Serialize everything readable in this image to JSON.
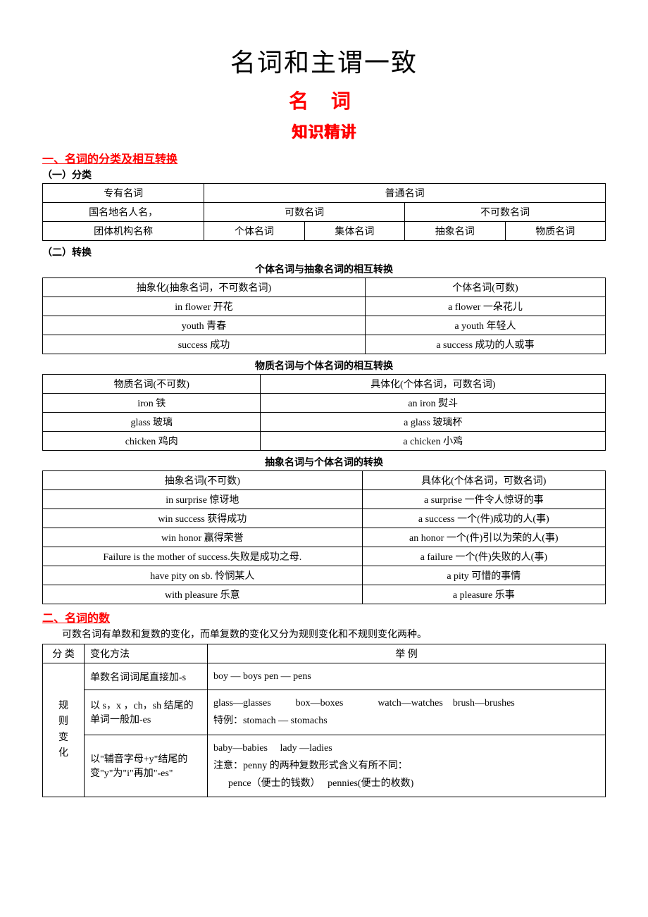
{
  "titles": {
    "main": "名词和主谓一致",
    "sub": "名 词",
    "knowledge": "知识精讲"
  },
  "section1": {
    "heading": "一、名词的分类及相互转换",
    "sub1": "（一）分类",
    "table1": {
      "r0c0": "专有名词",
      "r0c1": "普通名词",
      "r1c0": "国名地名人名，",
      "r1c1": "可数名词",
      "r1c2": "不可数名词",
      "r2c0": "团体机构名称",
      "r2c1": "个体名词",
      "r2c2": "集体名词",
      "r2c3": "抽象名词",
      "r2c4": "物质名词"
    },
    "sub2": "（二）转换",
    "caption1": "个体名词与抽象名词的相互转换",
    "table2": {
      "h0": "抽象化(抽象名词，不可数名词)",
      "h1": "个体名词(可数)",
      "r1c0": "in flower 开花",
      "r1c1": "a flower 一朵花儿",
      "r2c0": "youth 青春",
      "r2c1": "a youth 年轻人",
      "r3c0": "success 成功",
      "r3c1": "a success 成功的人或事"
    },
    "caption2": "物质名词与个体名词的相互转换",
    "table3": {
      "h0": "物质名词(不可数)",
      "h1": "具体化(个体名词，可数名词)",
      "r1c0": "iron 铁",
      "r1c1": "an iron 熨斗",
      "r2c0": "glass 玻璃",
      "r2c1": "a glass 玻璃杯",
      "r3c0": "chicken 鸡肉",
      "r3c1": "a chicken 小鸡"
    },
    "caption3": "抽象名词与个体名词的转换",
    "table4": {
      "h0": "抽象名词(不可数)",
      "h1": "具体化(个体名词，可数名词)",
      "r1c0": "in surprise  惊讶地",
      "r1c1": "a surprise  一件令人惊讶的事",
      "r2c0": "win success  获得成功",
      "r2c1": "a success  一个(件)成功的人(事)",
      "r3c0": "win honor  赢得荣誉",
      "r3c1": "an honor  一个(件)引以为荣的人(事)",
      "r4c0": "Failure is the mother of success.失败是成功之母.",
      "r4c1": "a failure  一个(件)失败的人(事)",
      "r5c0": "have pity on sb.  怜悯某人",
      "r5c1": "a pity  可惜的事情",
      "r6c0": "with pleasure  乐意",
      "r6c1": "a pleasure  乐事"
    }
  },
  "section2": {
    "heading": "二、名词的数",
    "intro": "可数名词有单数和复数的变化，而单复数的变化又分为规则变化和不规则变化两种。",
    "table": {
      "h0": "分  类",
      "h1": "变化方法",
      "h2": "举    例",
      "category": "规则变化",
      "r1method": "单数名词词尾直接加-s",
      "r1ex": "boy — boys      pen — pens",
      "r2method": "以 s，x ，ch，sh 结尾的单词一般加-es",
      "r2ex": "glass—glasses          box—boxes              watch—watches    brush—brushes\n特例：stomach — stomachs",
      "r3method": "以\"辅音字母+y\"结尾的变\"y\"为\"i\"再加\"-es\"",
      "r3ex": "baby—babies     lady —ladies\n注意：penny 的两种复数形式含义有所不同：\n      pence（便士的钱数）   pennies(便士的枚数)"
    }
  },
  "colors": {
    "heading_red": "#ff0000",
    "text_black": "#000000",
    "border": "#000000",
    "background": "#ffffff"
  }
}
